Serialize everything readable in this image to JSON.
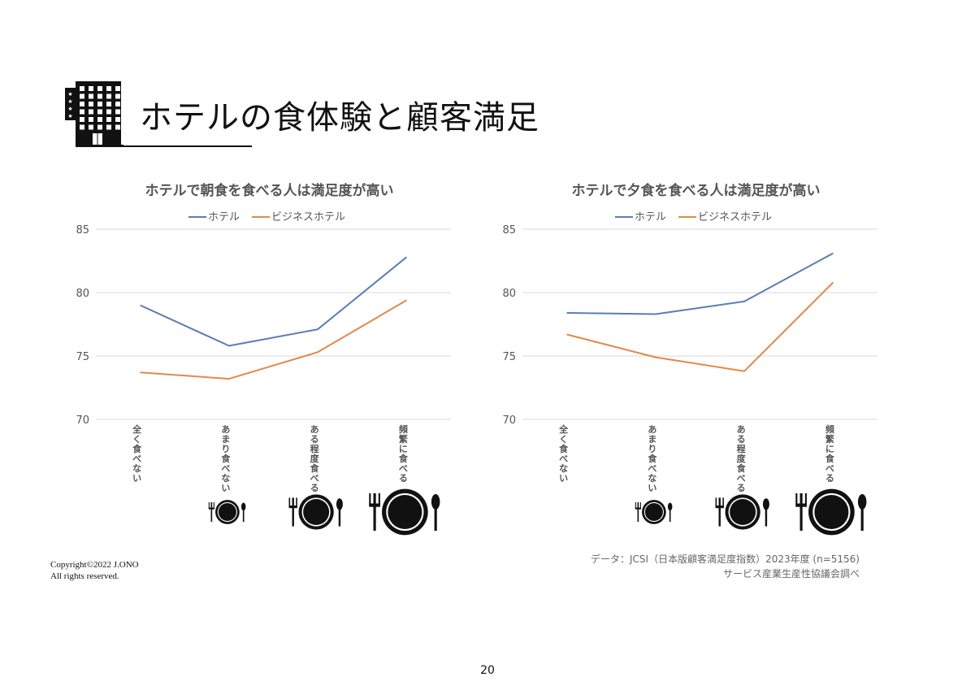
{
  "page": {
    "title": "ホテルの食体験と顧客満足",
    "copyright_line1": "Copyright©2022  J.ONO",
    "copyright_line2": "All rights reserved.",
    "source_line1": "データ：JCSI（日本版顧客満足度指数）2023年度 (n=5156)",
    "source_line2": "サービス産業生産性協議会調べ",
    "page_number": "20"
  },
  "colors": {
    "hotel": "#5B7DB1",
    "business_hotel": "#E08A4A",
    "grid": "#d9d9d9"
  },
  "icons": [
    "hotel-building-icon",
    "plate-cutlery-icon"
  ],
  "chart_data": [
    {
      "type": "line",
      "title": "ホテルで朝食を食べる人は満足度が高い",
      "categories": [
        "全く食べない",
        "あまり食べない",
        "ある程度食べる",
        "頻繁に食べる"
      ],
      "series": [
        {
          "name": "ホテル",
          "values": [
            79.0,
            75.8,
            77.1,
            82.8
          ]
        },
        {
          "name": "ビジネスホテル",
          "values": [
            73.7,
            73.2,
            75.3,
            79.4
          ]
        }
      ],
      "yticks": [
        "70",
        "75",
        "80",
        "85"
      ],
      "ylim": [
        70,
        85
      ],
      "grid": true,
      "legend": "top"
    },
    {
      "type": "line",
      "title": "ホテルで夕食を食べる人は満足度が高い",
      "categories": [
        "全く食べない",
        "あまり食べない",
        "ある程度食べる",
        "頻繁に食べる"
      ],
      "series": [
        {
          "name": "ホテル",
          "values": [
            78.4,
            78.3,
            79.3,
            83.1
          ]
        },
        {
          "name": "ビジネスホテル",
          "values": [
            76.7,
            74.9,
            73.8,
            80.8
          ]
        }
      ],
      "yticks": [
        "70",
        "75",
        "80",
        "85"
      ],
      "ylim": [
        70,
        85
      ],
      "grid": true,
      "legend": "top"
    }
  ]
}
